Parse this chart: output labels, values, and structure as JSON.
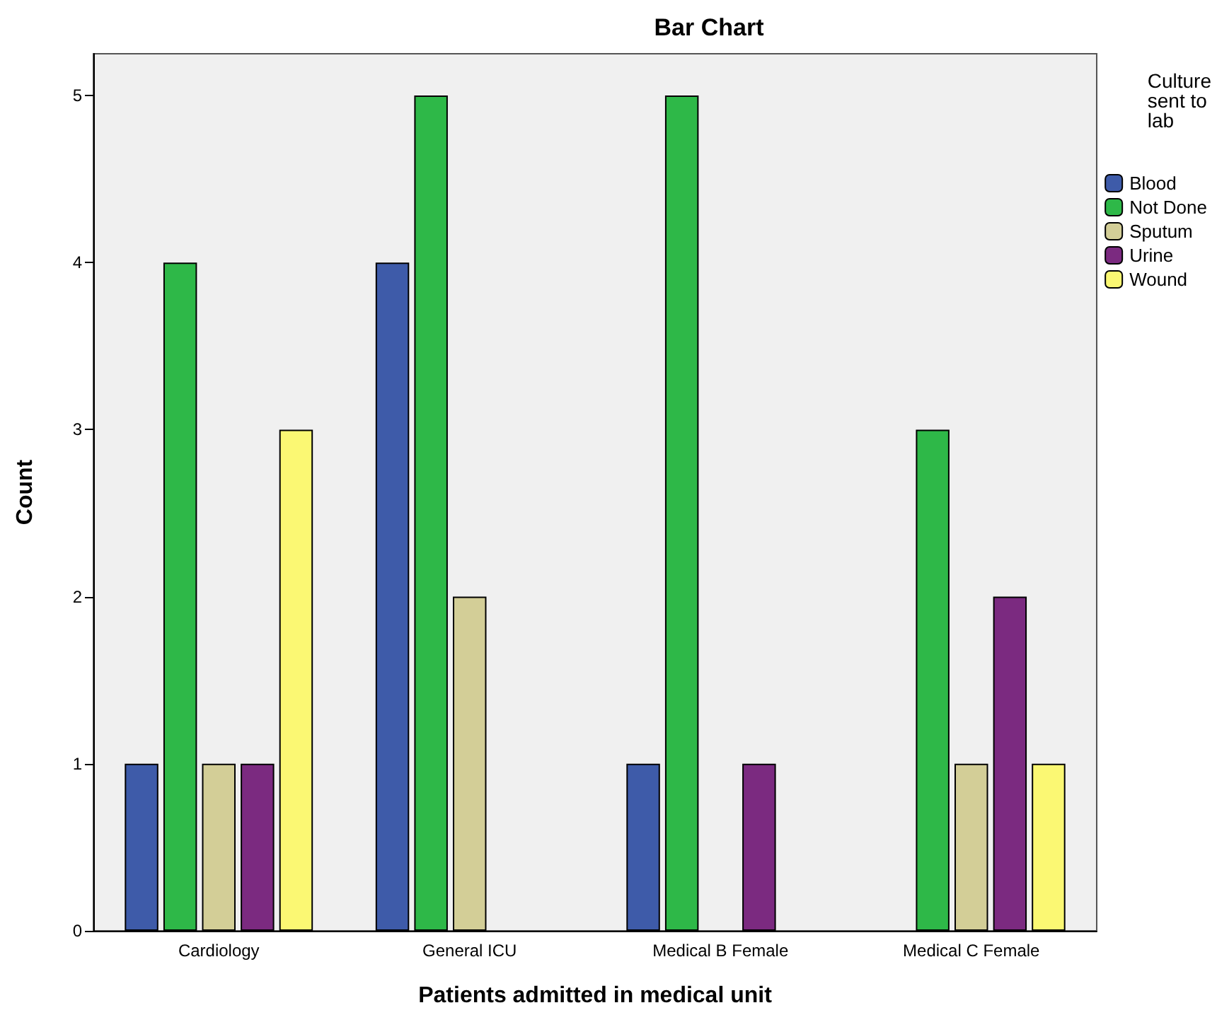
{
  "chart_data": {
    "type": "bar",
    "title": "Bar Chart",
    "xlabel": "Patients admitted in medical unit",
    "ylabel": "Count",
    "legend_title": "Culture sent to lab",
    "categories": [
      "Cardiology",
      "General ICU",
      "Medical B Female",
      "Medical C Female"
    ],
    "series": [
      {
        "name": "Blood",
        "color": "#3e5ba9",
        "values": [
          1,
          4,
          1,
          null
        ]
      },
      {
        "name": "Not Done",
        "color": "#2eb848",
        "values": [
          4,
          5,
          5,
          3
        ]
      },
      {
        "name": "Sputum",
        "color": "#d3ce97",
        "values": [
          1,
          2,
          null,
          1
        ]
      },
      {
        "name": "Urine",
        "color": "#7b2a80",
        "values": [
          1,
          null,
          1,
          2
        ]
      },
      {
        "name": "Wound",
        "color": "#fbf873",
        "values": [
          3,
          null,
          null,
          1
        ]
      }
    ],
    "ylim": [
      0,
      5.25
    ],
    "yticks": [
      0,
      1,
      2,
      3,
      4,
      5
    ],
    "grid": false,
    "legend": "right"
  }
}
